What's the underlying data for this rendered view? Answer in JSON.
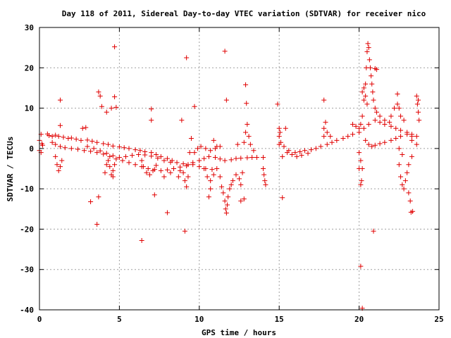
{
  "chart_data": {
    "type": "scatter",
    "title": "Day 118 of 2011, Sidereal Day-to-day VTEC variation (SDTVAR) for receiver nico",
    "xlabel": "GPS time / hours",
    "ylabel": "SDTVAR / TECUs",
    "xlim": [
      0,
      25
    ],
    "ylim": [
      -40,
      30
    ],
    "xticks": [
      0,
      5,
      10,
      15,
      20,
      25
    ],
    "yticks": [
      -40,
      -30,
      -20,
      -10,
      0,
      10,
      20,
      30
    ],
    "xtick_labels": [
      "0",
      "5",
      "10",
      "15",
      "20",
      "25"
    ],
    "ytick_labels": [
      "-40",
      "-30",
      "-20",
      "-10",
      "0",
      "10",
      "20",
      "30"
    ],
    "grid": true,
    "marker": "+",
    "color": "#e00000",
    "series": [
      {
        "points": [
          [
            0.0,
            2.0
          ],
          [
            0.0,
            -0.5
          ],
          [
            0.1,
            3.5
          ],
          [
            0.1,
            -1.0
          ],
          [
            0.15,
            1.2
          ],
          [
            0.2,
            0.8
          ],
          [
            0.5,
            3.6
          ],
          [
            0.6,
            3.2
          ],
          [
            0.8,
            3.0
          ],
          [
            1.0,
            3.3
          ],
          [
            1.2,
            3.0
          ],
          [
            1.5,
            2.8
          ],
          [
            1.8,
            2.5
          ],
          [
            2.0,
            2.6
          ],
          [
            2.3,
            2.3
          ],
          [
            2.6,
            2.0
          ],
          [
            3.0,
            2.1
          ],
          [
            3.3,
            1.8
          ],
          [
            3.6,
            1.5
          ],
          [
            4.0,
            1.2
          ],
          [
            4.3,
            1.0
          ],
          [
            4.6,
            0.6
          ],
          [
            5.0,
            0.4
          ],
          [
            5.3,
            0.2
          ],
          [
            5.6,
            0.0
          ],
          [
            6.0,
            -0.3
          ],
          [
            6.3,
            -0.5
          ],
          [
            6.6,
            -0.8
          ],
          [
            7.0,
            -1.0
          ],
          [
            7.3,
            -1.5
          ],
          [
            7.6,
            -2.0
          ],
          [
            8.0,
            -2.5
          ],
          [
            8.3,
            -3.0
          ],
          [
            8.6,
            -3.5
          ],
          [
            9.0,
            -3.8
          ],
          [
            9.3,
            -4.0
          ],
          [
            9.6,
            -3.5
          ],
          [
            10.0,
            -3.0
          ],
          [
            10.3,
            -2.5
          ],
          [
            10.6,
            -2.0
          ],
          [
            11.0,
            -2.2
          ],
          [
            11.3,
            -2.6
          ],
          [
            11.6,
            -3.0
          ],
          [
            12.0,
            -2.8
          ],
          [
            12.3,
            -2.5
          ],
          [
            12.6,
            -2.4
          ],
          [
            13.0,
            -2.3
          ],
          [
            13.3,
            -2.2
          ],
          [
            13.6,
            -2.2
          ],
          [
            14.0,
            -2.2
          ],
          [
            0.8,
            1.5
          ],
          [
            1.0,
            1.0
          ],
          [
            1.3,
            0.5
          ],
          [
            1.6,
            0.2
          ],
          [
            2.0,
            0.0
          ],
          [
            2.4,
            -0.2
          ],
          [
            2.8,
            -0.5
          ],
          [
            3.2,
            -0.7
          ],
          [
            3.6,
            -1.0
          ],
          [
            4.0,
            -1.4
          ],
          [
            4.4,
            -2.0
          ],
          [
            4.8,
            -2.6
          ],
          [
            5.2,
            -3.0
          ],
          [
            5.6,
            -3.5
          ],
          [
            6.0,
            -4.0
          ],
          [
            6.4,
            -4.5
          ],
          [
            6.8,
            -5.0
          ],
          [
            7.2,
            -5.2
          ],
          [
            7.6,
            -5.5
          ],
          [
            8.0,
            -5.3
          ],
          [
            8.4,
            -5.0
          ],
          [
            8.8,
            -4.6
          ],
          [
            9.2,
            -4.3
          ],
          [
            9.6,
            -4.0
          ],
          [
            10.0,
            -4.5
          ],
          [
            10.4,
            -5.0
          ],
          [
            10.8,
            -5.2
          ],
          [
            3.0,
            0.5
          ],
          [
            3.4,
            0.0
          ],
          [
            3.8,
            -0.6
          ],
          [
            4.2,
            -1.2
          ],
          [
            4.6,
            -1.8
          ],
          [
            5.0,
            -2.2
          ],
          [
            5.4,
            -2.0
          ],
          [
            5.8,
            -1.7
          ],
          [
            6.2,
            -1.5
          ],
          [
            6.6,
            -1.6
          ],
          [
            7.0,
            -1.9
          ],
          [
            7.4,
            -2.4
          ],
          [
            7.8,
            -3.0
          ],
          [
            8.2,
            -3.4
          ],
          [
            4.1,
            -6.0
          ],
          [
            4.2,
            -4.0
          ],
          [
            4.3,
            -3.0
          ],
          [
            4.4,
            -4.5
          ],
          [
            4.5,
            -6.5
          ],
          [
            4.6,
            -5.5
          ],
          [
            4.7,
            -4.0
          ],
          [
            6.4,
            -3.0
          ],
          [
            6.5,
            -4.5
          ],
          [
            6.7,
            -6.0
          ],
          [
            6.9,
            -6.5
          ],
          [
            7.1,
            -5.5
          ],
          [
            7.3,
            -4.2
          ],
          [
            1.0,
            -2.0
          ],
          [
            1.1,
            -4.0
          ],
          [
            1.2,
            -5.5
          ],
          [
            1.3,
            -4.5
          ],
          [
            1.4,
            -3.0
          ],
          [
            8.7,
            -7.0
          ],
          [
            8.8,
            -5.5
          ],
          [
            9.0,
            -6.0
          ],
          [
            9.1,
            -8.0
          ],
          [
            9.2,
            -9.5
          ],
          [
            9.3,
            -7.0
          ],
          [
            10.3,
            -5.0
          ],
          [
            10.5,
            -7.0
          ],
          [
            10.7,
            -8.0
          ],
          [
            10.9,
            -6.5
          ],
          [
            11.1,
            -5.0
          ],
          [
            11.3,
            -7.0
          ],
          [
            11.4,
            -9.5
          ],
          [
            11.5,
            -11.0
          ],
          [
            11.6,
            -13.0
          ],
          [
            11.65,
            -15.0
          ],
          [
            11.7,
            -16.0
          ],
          [
            11.75,
            -14.0
          ],
          [
            11.8,
            -12.0
          ],
          [
            11.9,
            -10.0
          ],
          [
            12.0,
            -9.0
          ],
          [
            12.1,
            -8.0
          ],
          [
            12.3,
            -6.5
          ],
          [
            12.5,
            -7.5
          ],
          [
            12.6,
            -9.0
          ],
          [
            12.7,
            -6.0
          ],
          [
            9.7,
            -1.0
          ],
          [
            9.9,
            0.0
          ],
          [
            10.1,
            0.5
          ],
          [
            10.4,
            0.0
          ],
          [
            10.7,
            -0.5
          ],
          [
            11.0,
            0.0
          ],
          [
            11.3,
            0.5
          ],
          [
            12.8,
            1.5
          ],
          [
            12.9,
            4.0
          ],
          [
            13.0,
            6.0
          ],
          [
            13.1,
            3.0
          ],
          [
            13.2,
            1.0
          ],
          [
            13.4,
            -0.5
          ],
          [
            14.0,
            -5.0
          ],
          [
            14.05,
            -6.5
          ],
          [
            14.1,
            -8.0
          ],
          [
            14.15,
            -9.0
          ],
          [
            15.0,
            1.0
          ],
          [
            15.1,
            1.5
          ],
          [
            15.3,
            0.5
          ],
          [
            15.6,
            -0.5
          ],
          [
            16.0,
            -1.0
          ],
          [
            16.3,
            -0.8
          ],
          [
            16.6,
            -0.5
          ],
          [
            17.0,
            -0.3
          ],
          [
            17.3,
            0.0
          ],
          [
            17.6,
            0.5
          ],
          [
            18.0,
            1.0
          ],
          [
            18.3,
            1.5
          ],
          [
            18.6,
            2.0
          ],
          [
            19.0,
            2.5
          ],
          [
            19.3,
            3.0
          ],
          [
            19.6,
            3.5
          ],
          [
            20.0,
            4.0
          ],
          [
            20.3,
            5.0
          ],
          [
            20.6,
            6.0
          ],
          [
            21.0,
            7.0
          ],
          [
            21.3,
            6.5
          ],
          [
            21.6,
            6.0
          ],
          [
            22.0,
            5.5
          ],
          [
            22.3,
            5.0
          ],
          [
            22.6,
            4.5
          ],
          [
            23.0,
            4.0
          ],
          [
            23.3,
            3.5
          ],
          [
            23.6,
            3.0
          ],
          [
            15.2,
            -2.0
          ],
          [
            15.5,
            -1.0
          ],
          [
            15.8,
            -1.5
          ],
          [
            16.1,
            -2.0
          ],
          [
            16.4,
            -1.7
          ],
          [
            16.8,
            -1.2
          ],
          [
            15.0,
            3.0
          ],
          [
            15.0,
            5.0
          ],
          [
            15.05,
            4.0
          ],
          [
            17.8,
            3.0
          ],
          [
            17.8,
            5.0
          ],
          [
            17.9,
            6.5
          ],
          [
            18.0,
            4.0
          ],
          [
            18.2,
            3.0
          ],
          [
            19.6,
            6.0
          ],
          [
            19.8,
            5.5
          ],
          [
            20.0,
            5.0
          ],
          [
            20.1,
            6.0
          ],
          [
            20.2,
            8.0
          ],
          [
            20.3,
            12.0
          ],
          [
            20.4,
            16.0
          ],
          [
            20.45,
            20.0
          ],
          [
            20.5,
            24.0
          ],
          [
            20.55,
            26.0
          ],
          [
            20.6,
            25.0
          ],
          [
            20.65,
            22.0
          ],
          [
            20.7,
            20.0
          ],
          [
            20.75,
            18.0
          ],
          [
            20.8,
            16.0
          ],
          [
            20.85,
            14.0
          ],
          [
            20.9,
            12.0
          ],
          [
            21.0,
            10.0
          ],
          [
            21.1,
            9.0
          ],
          [
            21.3,
            8.0
          ],
          [
            21.6,
            7.0
          ],
          [
            21.9,
            6.5
          ],
          [
            20.2,
            14.0
          ],
          [
            20.3,
            15.0
          ],
          [
            20.4,
            13.0
          ],
          [
            20.5,
            11.0
          ],
          [
            20.4,
            2.0
          ],
          [
            20.6,
            1.0
          ],
          [
            20.8,
            0.5
          ],
          [
            21.0,
            0.8
          ],
          [
            21.3,
            1.2
          ],
          [
            21.6,
            1.5
          ],
          [
            22.0,
            2.0
          ],
          [
            22.3,
            2.5
          ],
          [
            22.6,
            3.0
          ],
          [
            23.0,
            3.5
          ],
          [
            23.3,
            2.0
          ],
          [
            23.6,
            1.0
          ],
          [
            22.0,
            8.0
          ],
          [
            22.2,
            10.0
          ],
          [
            22.4,
            11.0
          ],
          [
            22.5,
            10.0
          ],
          [
            22.6,
            8.0
          ],
          [
            22.8,
            7.0
          ],
          [
            23.6,
            13.0
          ],
          [
            23.65,
            11.0
          ],
          [
            23.7,
            9.0
          ],
          [
            23.75,
            7.0
          ],
          [
            23.7,
            12.0
          ],
          [
            22.5,
            0.0
          ],
          [
            22.5,
            -4.0
          ],
          [
            22.6,
            -7.0
          ],
          [
            22.7,
            -9.0
          ],
          [
            22.8,
            -10.0
          ],
          [
            22.9,
            -8.0
          ],
          [
            23.0,
            -6.0
          ],
          [
            23.1,
            -4.0
          ],
          [
            23.3,
            -2.0
          ],
          [
            20.0,
            -1.0
          ],
          [
            20.1,
            -3.0
          ],
          [
            20.2,
            -5.0
          ],
          [
            20.15,
            -8.0
          ],
          [
            20.1,
            -9.0
          ],
          [
            1.3,
            12.0
          ],
          [
            1.3,
            5.7
          ],
          [
            2.7,
            5.0
          ],
          [
            2.9,
            5.2
          ],
          [
            3.2,
            -13.2
          ],
          [
            3.6,
            -18.8
          ],
          [
            3.7,
            14.0
          ],
          [
            3.7,
            -12.0
          ],
          [
            3.8,
            13.0
          ],
          [
            3.9,
            10.4
          ],
          [
            4.2,
            9.0
          ],
          [
            4.5,
            10.0
          ],
          [
            4.6,
            -7.0
          ],
          [
            4.7,
            25.2
          ],
          [
            4.7,
            12.8
          ],
          [
            4.8,
            10.2
          ],
          [
            6.4,
            -22.8
          ],
          [
            7.0,
            9.8
          ],
          [
            7.0,
            7.0
          ],
          [
            7.2,
            -11.5
          ],
          [
            7.8,
            -7.0
          ],
          [
            8.0,
            -15.9
          ],
          [
            8.2,
            -6.0
          ],
          [
            8.9,
            7.0
          ],
          [
            9.1,
            -20.5
          ],
          [
            9.2,
            22.5
          ],
          [
            9.4,
            -1.0
          ],
          [
            9.5,
            2.5
          ],
          [
            9.7,
            10.4
          ],
          [
            10.6,
            -12.0
          ],
          [
            10.7,
            -10.0
          ],
          [
            10.9,
            2.0
          ],
          [
            11.1,
            0.5
          ],
          [
            11.6,
            24.1
          ],
          [
            11.7,
            12.0
          ],
          [
            12.4,
            1.0
          ],
          [
            12.9,
            15.8
          ],
          [
            12.95,
            11.2
          ],
          [
            12.6,
            -13.0
          ],
          [
            12.8,
            -12.5
          ],
          [
            14.9,
            11.0
          ],
          [
            15.2,
            -12.2
          ],
          [
            15.4,
            5.0
          ],
          [
            17.8,
            12.0
          ],
          [
            20.0,
            -5.0
          ],
          [
            20.1,
            -29.2
          ],
          [
            20.2,
            -39.6
          ],
          [
            20.9,
            -20.5
          ],
          [
            21.1,
            19.6
          ],
          [
            21.0,
            19.8
          ],
          [
            22.4,
            13.5
          ],
          [
            22.7,
            -1.5
          ],
          [
            23.1,
            -11.0
          ],
          [
            23.2,
            -13.0
          ],
          [
            23.25,
            -15.8
          ],
          [
            23.35,
            -15.6
          ],
          [
            23.3,
            3.0
          ]
        ]
      }
    ]
  }
}
